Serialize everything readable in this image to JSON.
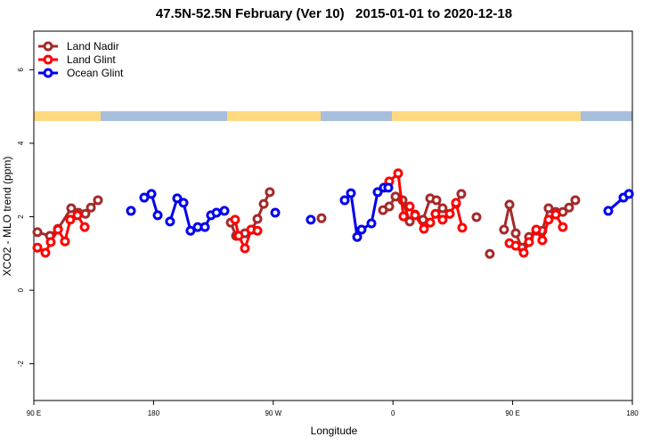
{
  "chart_data": {
    "type": "line",
    "title": "47.5N-52.5N February (Ver 10)   2015-01-01 to 2020-12-18",
    "xlabel": "Longitude",
    "ylabel": "XCO2 - MLO trend (ppm)",
    "xlim": [
      90,
      540
    ],
    "ylim": [
      -3,
      7.05
    ],
    "xticks": [
      {
        "value": 90,
        "label": "90 E"
      },
      {
        "value": 180,
        "label": "180"
      },
      {
        "value": 270,
        "label": "90 W"
      },
      {
        "value": 360,
        "label": "0"
      },
      {
        "value": 450,
        "label": "90 E"
      },
      {
        "value": 540,
        "label": "180"
      }
    ],
    "yticks": [
      6,
      4,
      2,
      0,
      -2
    ],
    "legend": "top-left",
    "series": [
      {
        "name": "Land Nadir",
        "color": "#A52A2A",
        "x": [
          92.7,
          102.1,
          108.1,
          118.1,
          123.5,
          128.8,
          132.9,
          138.2,
          null,
          238.0,
          242.0,
          248.7,
          254.1,
          258.1,
          262.8,
          267.4,
          null,
          306.3,
          null,
          352.5,
          357.2,
          361.9,
          367.2,
          372.6,
          376.6,
          382.6,
          388.0,
          392.7,
          397.3,
          402.7,
          407.4,
          411.4,
          null,
          422.8,
          null,
          432.8,
          null,
          443.5,
          447.6,
          452.3,
          456.9,
          462.3,
          467.7,
          472.3,
          477.0,
          482.4,
          487.7,
          492.4,
          497.1
        ],
        "values": [
          1.58,
          1.48,
          1.67,
          2.23,
          2.11,
          2.08,
          2.25,
          2.45,
          null,
          1.84,
          1.48,
          1.55,
          1.65,
          1.94,
          2.35,
          2.67,
          null,
          1.96,
          null,
          2.18,
          2.28,
          2.55,
          2.45,
          1.87,
          2.06,
          1.92,
          2.5,
          2.45,
          2.23,
          2.08,
          2.35,
          2.62,
          null,
          1.99,
          null,
          0.99,
          null,
          1.65,
          2.33,
          1.55,
          1.16,
          1.45,
          1.62,
          1.62,
          2.23,
          2.13,
          2.13,
          2.25,
          2.45
        ]
      },
      {
        "name": "Land Glint",
        "color": "#FF0000",
        "x": [
          92.7,
          98.7,
          102.7,
          108.1,
          113.4,
          117.4,
          122.8,
          128.2,
          null,
          241.3,
          244.0,
          248.7,
          253.4,
          258.1,
          null,
          357.2,
          363.9,
          367.9,
          372.6,
          376.6,
          383.3,
          388.0,
          392.0,
          397.3,
          402.7,
          407.4,
          412.1,
          null,
          447.6,
          452.3,
          458.3,
          462.3,
          467.7,
          472.3,
          477.0,
          482.4,
          487.7
        ],
        "values": [
          1.16,
          1.02,
          1.31,
          1.65,
          1.33,
          1.92,
          2.04,
          1.72,
          null,
          1.92,
          1.48,
          1.14,
          1.65,
          1.62,
          null,
          2.96,
          3.18,
          2.01,
          2.28,
          2.04,
          1.67,
          1.84,
          2.08,
          1.92,
          2.08,
          2.38,
          1.7,
          null,
          1.28,
          1.21,
          1.02,
          1.31,
          1.65,
          1.36,
          1.92,
          2.06,
          1.72
        ]
      },
      {
        "name": "Ocean Glint",
        "color": "#0000EE",
        "x": [
          163.0,
          null,
          173.0,
          178.4,
          183.1,
          null,
          192.4,
          197.8,
          202.5,
          207.8,
          213.2,
          218.6,
          223.2,
          227.3,
          233.3,
          null,
          271.5,
          null,
          298.2,
          null,
          323.7,
          328.4,
          333.1,
          336.4,
          343.8,
          348.5,
          353.2,
          356.5,
          null,
          521.9,
          533.3,
          537.4
        ],
        "values": [
          2.16,
          null,
          2.52,
          2.62,
          2.04,
          null,
          1.87,
          2.5,
          2.38,
          1.62,
          1.72,
          1.72,
          2.04,
          2.11,
          2.16,
          null,
          2.11,
          null,
          1.92,
          null,
          2.45,
          2.64,
          1.45,
          1.65,
          1.82,
          2.67,
          2.79,
          2.79,
          null,
          2.16,
          2.52,
          2.62
        ]
      }
    ]
  }
}
